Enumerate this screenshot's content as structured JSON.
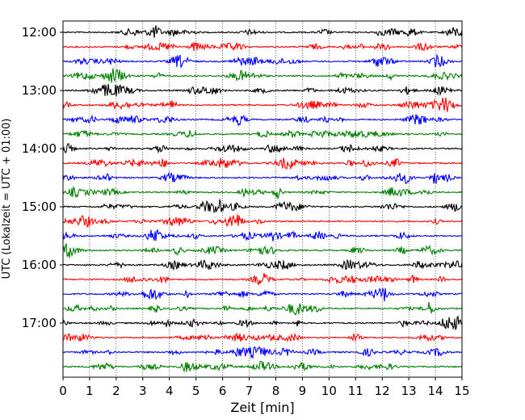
{
  "chart_data": {
    "type": "line",
    "xlabel": "Zeit  [min]",
    "ylabel": "UTC (Lokalzeit = UTC + 01:00)",
    "xlim": [
      0,
      15
    ],
    "x_ticks": [
      "0",
      "1",
      "2",
      "3",
      "4",
      "5",
      "6",
      "7",
      "8",
      "9",
      "10",
      "11",
      "12",
      "13",
      "14",
      "15"
    ],
    "y_ticks": [
      "12:00",
      "13:00",
      "14:00",
      "15:00",
      "16:00",
      "17:00"
    ],
    "grid": {
      "vertical": true,
      "style": "dotted"
    },
    "trace_colors": [
      "#000000",
      "#ff0000",
      "#0000ff",
      "#008000"
    ],
    "trace_rows": 24,
    "trace_interval_minutes": 15,
    "first_trace": "12:00",
    "last_trace": "17:45"
  }
}
